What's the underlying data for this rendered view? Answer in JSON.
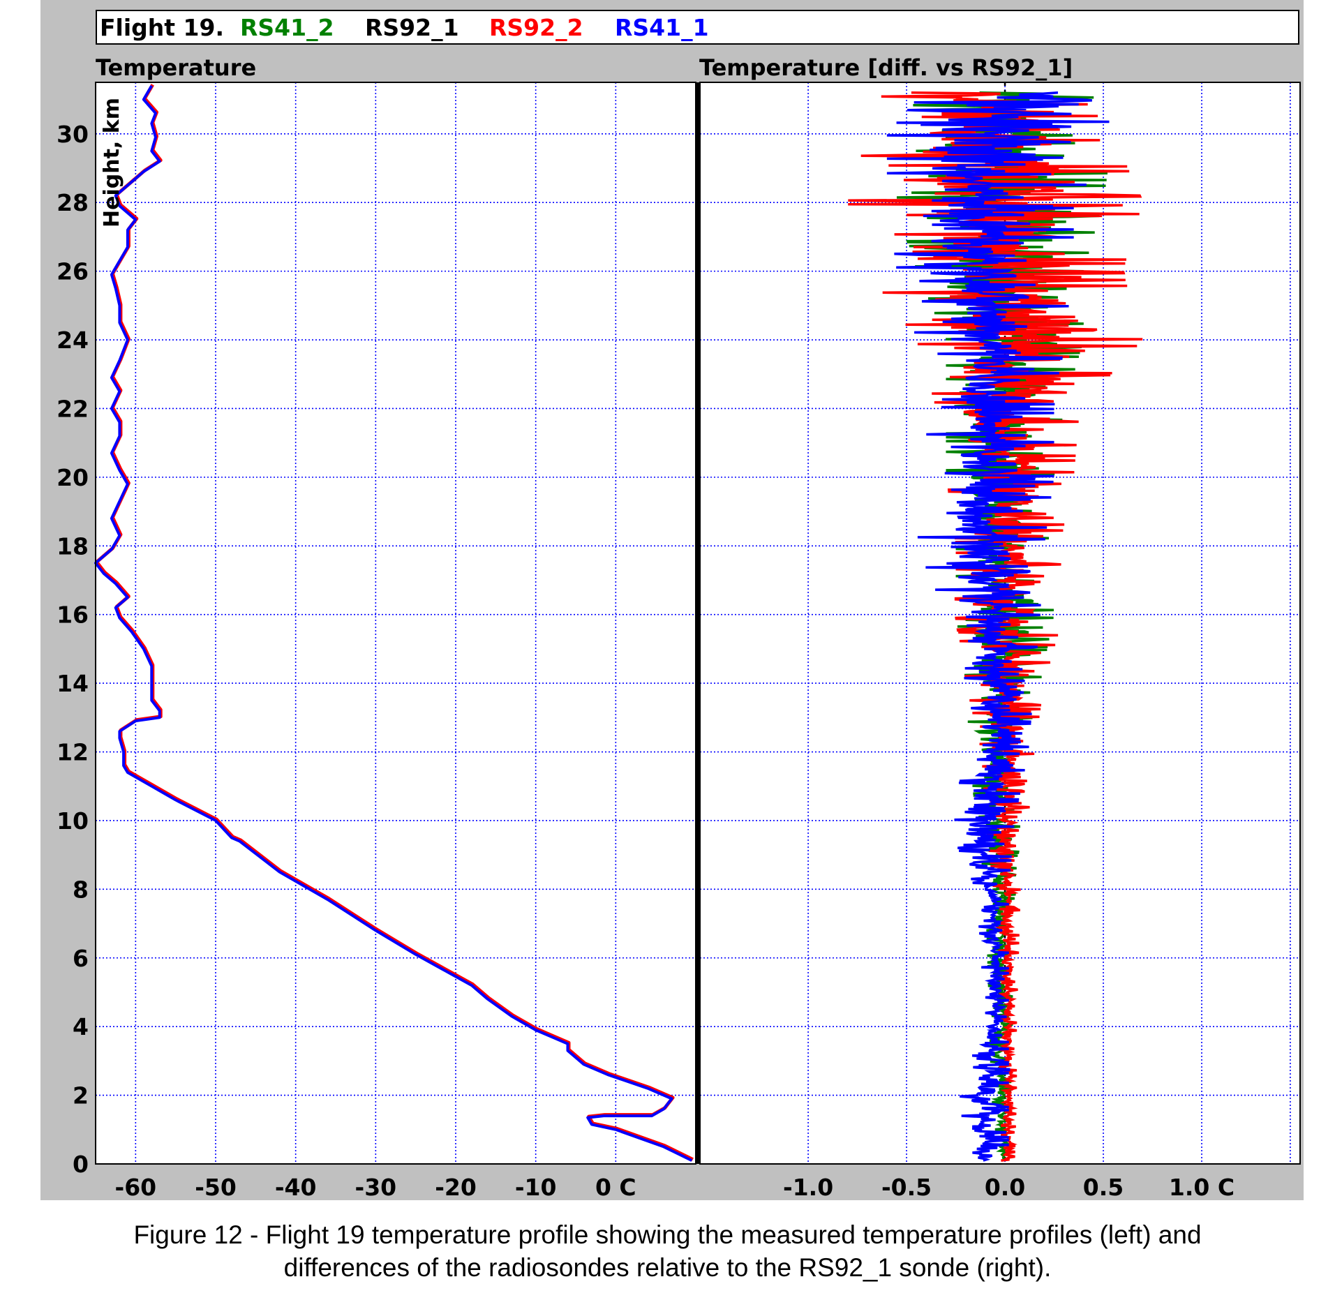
{
  "legend": {
    "flight": "Flight 19.",
    "items": [
      {
        "name": "RS41_2",
        "color": "#008000"
      },
      {
        "name": "RS92_1",
        "color": "#000000"
      },
      {
        "name": "RS92_2",
        "color": "#ff0000"
      },
      {
        "name": "RS41_1",
        "color": "#0000ff"
      }
    ]
  },
  "chart_data": [
    {
      "type": "line",
      "title": "Temperature",
      "ylabel": "Height, km",
      "xlim": [
        -65,
        10
      ],
      "ylim": [
        0,
        31.5
      ],
      "x_ticks": [
        -60,
        -50,
        -40,
        -30,
        -20,
        -10,
        0
      ],
      "x_tick_labels": [
        "-60",
        "-50",
        "-40",
        "-30",
        "-20",
        "-10",
        "0 C"
      ],
      "y_ticks": [
        0,
        2,
        4,
        6,
        8,
        10,
        12,
        14,
        16,
        18,
        20,
        22,
        24,
        26,
        28,
        30
      ],
      "y_tick_labels": [
        "0",
        "2",
        "4",
        "6",
        "8",
        "10",
        "12",
        "14",
        "16",
        "18",
        "20",
        "22",
        "24",
        "26",
        "28",
        "30"
      ],
      "grid": true,
      "series": [
        {
          "name": "RS41_1",
          "color": "#0000ff",
          "points": [
            [
              9.5,
              0.1
            ],
            [
              6,
              0.5
            ],
            [
              0,
              1.0
            ],
            [
              -3,
              1.15
            ],
            [
              -3.5,
              1.35
            ],
            [
              -1.5,
              1.4
            ],
            [
              4.5,
              1.4
            ],
            [
              6,
              1.6
            ],
            [
              7,
              1.9
            ],
            [
              4,
              2.2
            ],
            [
              -1,
              2.6
            ],
            [
              -4,
              2.9
            ],
            [
              -6,
              3.3
            ],
            [
              -6,
              3.5
            ],
            [
              -8,
              3.7
            ],
            [
              -10,
              3.9
            ],
            [
              -13,
              4.3
            ],
            [
              -16,
              4.8
            ],
            [
              -18,
              5.2
            ],
            [
              -25,
              6.1
            ],
            [
              -30,
              6.8
            ],
            [
              -36,
              7.7
            ],
            [
              -42,
              8.5
            ],
            [
              -47,
              9.4
            ],
            [
              -48,
              9.5
            ],
            [
              -50,
              10.0
            ],
            [
              -55,
              10.6
            ],
            [
              -58,
              11.0
            ],
            [
              -61,
              11.4
            ],
            [
              -61.5,
              11.6
            ],
            [
              -61.5,
              12.0
            ],
            [
              -62,
              12.4
            ],
            [
              -62,
              12.6
            ],
            [
              -60,
              12.9
            ],
            [
              -57,
              13.0
            ],
            [
              -57,
              13.2
            ],
            [
              -58,
              13.5
            ],
            [
              -58,
              14.0
            ],
            [
              -58,
              14.5
            ],
            [
              -59,
              15.0
            ],
            [
              -60.5,
              15.5
            ],
            [
              -62,
              15.9
            ],
            [
              -62.5,
              16.2
            ],
            [
              -61,
              16.5
            ],
            [
              -62.5,
              16.9
            ],
            [
              -64,
              17.2
            ],
            [
              -65,
              17.5
            ],
            [
              -63,
              17.9
            ],
            [
              -62,
              18.3
            ],
            [
              -63,
              18.8
            ],
            [
              -62,
              19.3
            ],
            [
              -61,
              19.8
            ],
            [
              -62,
              20.2
            ],
            [
              -63,
              20.7
            ],
            [
              -62,
              21.2
            ],
            [
              -62,
              21.6
            ],
            [
              -63,
              22.0
            ],
            [
              -62,
              22.5
            ],
            [
              -63,
              22.9
            ],
            [
              -62,
              23.4
            ],
            [
              -61,
              24.0
            ],
            [
              -62,
              24.5
            ],
            [
              -62,
              25.0
            ],
            [
              -62.5,
              25.5
            ],
            [
              -63,
              25.9
            ],
            [
              -62,
              26.3
            ],
            [
              -61,
              26.7
            ],
            [
              -61,
              27.2
            ],
            [
              -60,
              27.5
            ],
            [
              -62,
              27.9
            ],
            [
              -62.5,
              28.2
            ],
            [
              -61,
              28.5
            ],
            [
              -59,
              28.9
            ],
            [
              -57,
              29.2
            ],
            [
              -58,
              29.5
            ],
            [
              -57.5,
              29.9
            ],
            [
              -58,
              30.3
            ],
            [
              -57.5,
              30.6
            ],
            [
              -59,
              31.0
            ],
            [
              -58,
              31.4
            ]
          ]
        },
        {
          "name": "RS92_2",
          "color": "#ff0000",
          "points": [
            [
              9.5,
              0.1
            ],
            [
              6,
              0.5
            ],
            [
              0,
              1.0
            ],
            [
              -3,
              1.15
            ],
            [
              -3.5,
              1.35
            ],
            [
              -1.5,
              1.4
            ],
            [
              4.5,
              1.4
            ],
            [
              6,
              1.6
            ],
            [
              7,
              1.9
            ],
            [
              4,
              2.2
            ],
            [
              -1,
              2.6
            ],
            [
              -4,
              2.9
            ],
            [
              -6,
              3.3
            ],
            [
              -6,
              3.5
            ],
            [
              -8,
              3.7
            ],
            [
              -10,
              3.9
            ],
            [
              -13,
              4.3
            ],
            [
              -16,
              4.8
            ],
            [
              -18,
              5.2
            ],
            [
              -25,
              6.1
            ],
            [
              -30,
              6.8
            ],
            [
              -36,
              7.7
            ],
            [
              -42,
              8.5
            ],
            [
              -47,
              9.4
            ],
            [
              -48,
              9.5
            ],
            [
              -50,
              10.0
            ],
            [
              -55,
              10.6
            ],
            [
              -58,
              11.0
            ],
            [
              -61,
              11.4
            ],
            [
              -61.5,
              11.6
            ],
            [
              -61.5,
              12.0
            ],
            [
              -62,
              12.4
            ],
            [
              -62,
              12.6
            ],
            [
              -60,
              12.9
            ],
            [
              -57,
              13.0
            ],
            [
              -57,
              13.2
            ],
            [
              -58,
              13.5
            ],
            [
              -58,
              14.0
            ],
            [
              -58,
              14.5
            ],
            [
              -59,
              15.0
            ],
            [
              -60.5,
              15.5
            ],
            [
              -62,
              15.9
            ],
            [
              -62.5,
              16.2
            ],
            [
              -61,
              16.5
            ],
            [
              -62.5,
              16.9
            ],
            [
              -64,
              17.2
            ],
            [
              -65,
              17.5
            ],
            [
              -63,
              17.9
            ],
            [
              -62,
              18.3
            ],
            [
              -63,
              18.8
            ],
            [
              -62,
              19.3
            ],
            [
              -61,
              19.8
            ],
            [
              -62,
              20.2
            ],
            [
              -63,
              20.7
            ],
            [
              -62,
              21.2
            ],
            [
              -62,
              21.6
            ],
            [
              -63,
              22.0
            ],
            [
              -62,
              22.5
            ],
            [
              -63,
              22.9
            ],
            [
              -62,
              23.4
            ],
            [
              -61,
              24.0
            ],
            [
              -62,
              24.5
            ],
            [
              -62,
              25.0
            ],
            [
              -62.5,
              25.5
            ],
            [
              -63,
              25.9
            ],
            [
              -62,
              26.3
            ],
            [
              -61,
              26.7
            ],
            [
              -61,
              27.2
            ],
            [
              -60,
              27.5
            ],
            [
              -62,
              27.9
            ],
            [
              -62.5,
              28.2
            ],
            [
              -61,
              28.5
            ],
            [
              -59,
              28.9
            ],
            [
              -57,
              29.2
            ],
            [
              -58,
              29.5
            ],
            [
              -57.5,
              29.9
            ],
            [
              -58,
              30.3
            ],
            [
              -57.5,
              30.6
            ],
            [
              -59,
              31.0
            ],
            [
              -58,
              31.4
            ]
          ]
        }
      ]
    },
    {
      "type": "line",
      "title": "Temperature [diff. vs RS92_1]",
      "xlim": [
        -1.55,
        1.5
      ],
      "ylim": [
        0,
        31.5
      ],
      "x_ticks": [
        -1.0,
        -0.5,
        0.0,
        0.5,
        1.0
      ],
      "x_tick_labels": [
        "-1.0",
        "-0.5",
        "0.0",
        "0.5",
        "1.0 C"
      ],
      "grid": true,
      "series": [
        {
          "name": "RS41_2",
          "color": "#008000",
          "envelope": [
            [
              0,
              -0.03,
              0.03
            ],
            [
              2,
              -0.07,
              0.03
            ],
            [
              4,
              -0.08,
              0.04
            ],
            [
              6,
              -0.09,
              0.04
            ],
            [
              8,
              -0.1,
              0.05
            ],
            [
              10,
              -0.15,
              0.08
            ],
            [
              12,
              -0.18,
              0.1
            ],
            [
              14,
              -0.2,
              0.18
            ],
            [
              16,
              -0.25,
              0.25
            ],
            [
              18,
              -0.25,
              0.22
            ],
            [
              20,
              -0.3,
              0.25
            ],
            [
              22,
              -0.3,
              0.3
            ],
            [
              24,
              -0.3,
              0.4
            ],
            [
              26,
              -0.45,
              0.4
            ],
            [
              28,
              -0.55,
              0.5
            ],
            [
              30,
              -0.55,
              0.55
            ],
            [
              31,
              -0.45,
              0.45
            ]
          ]
        },
        {
          "name": "RS92_2",
          "color": "#ff0000",
          "envelope": [
            [
              0,
              -0.02,
              0.05
            ],
            [
              2,
              -0.02,
              0.06
            ],
            [
              4,
              -0.03,
              0.06
            ],
            [
              6,
              -0.03,
              0.07
            ],
            [
              8,
              -0.06,
              0.08
            ],
            [
              10,
              -0.1,
              0.12
            ],
            [
              12,
              -0.12,
              0.15
            ],
            [
              14,
              -0.2,
              0.2
            ],
            [
              16,
              -0.25,
              0.3
            ],
            [
              18,
              -0.25,
              0.28
            ],
            [
              20,
              -0.3,
              0.35
            ],
            [
              22,
              -0.35,
              0.38
            ],
            [
              24,
              -0.45,
              0.7
            ],
            [
              26,
              -0.7,
              0.6
            ],
            [
              28,
              -0.8,
              0.7
            ],
            [
              30,
              -0.7,
              0.55
            ],
            [
              31,
              -0.85,
              0.4
            ]
          ]
        },
        {
          "name": "RS41_1",
          "color": "#0000ff",
          "envelope": [
            [
              0,
              -0.2,
              0.02
            ],
            [
              2,
              -0.23,
              0.02
            ],
            [
              4,
              -0.12,
              0.02
            ],
            [
              6,
              -0.12,
              0.02
            ],
            [
              8,
              -0.15,
              0.02
            ],
            [
              10,
              -0.3,
              0.05
            ],
            [
              12,
              -0.18,
              0.12
            ],
            [
              14,
              -0.2,
              0.15
            ],
            [
              16,
              -0.3,
              0.18
            ],
            [
              18,
              -0.45,
              0.2
            ],
            [
              20,
              -0.4,
              0.25
            ],
            [
              22,
              -0.4,
              0.25
            ],
            [
              24,
              -0.45,
              0.3
            ],
            [
              26,
              -0.55,
              0.35
            ],
            [
              28,
              -0.6,
              0.35
            ],
            [
              30,
              -0.6,
              0.6
            ],
            [
              31,
              -0.45,
              0.7
            ]
          ]
        }
      ]
    }
  ],
  "caption": {
    "line1": "Figure 12 - Flight 19 temperature profile showing the measured temperature profiles (left) and",
    "line2": "differences of the radiosondes relative to the RS92_1 sonde (right)."
  }
}
